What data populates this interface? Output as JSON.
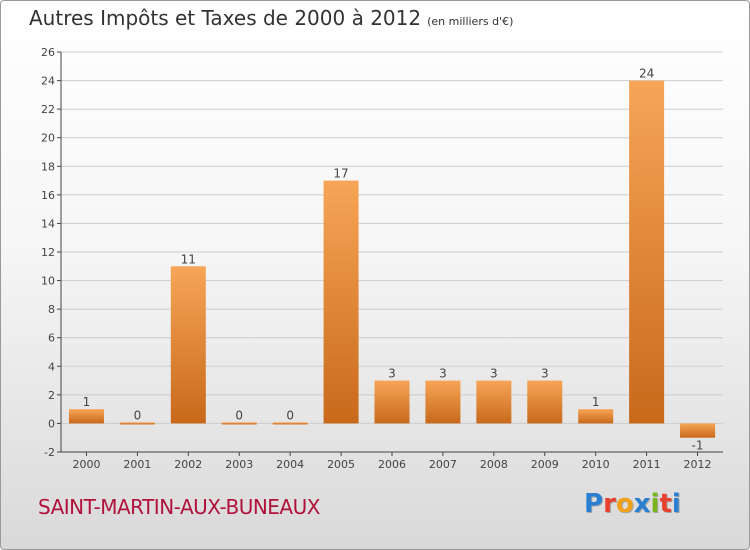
{
  "header": {
    "title": "Autres Impôts et Taxes de 2000 à 2012",
    "subtitle": "(en milliers d'€)"
  },
  "footer": {
    "commune": "SAINT-MARTIN-AUX-BUNEAUX",
    "brand": "Proxiti",
    "brand_colors": [
      "#2a7fd1",
      "#e8402e",
      "#f2a11b",
      "#2a7fd1",
      "#7ab51d",
      "#e8402e",
      "#2a7fd1"
    ]
  },
  "colors": {
    "bar_top": "#f7a558",
    "bar_bottom": "#c8691a",
    "grid": "#cccccc",
    "axis": "#444444",
    "title": "#333333",
    "commune": "#b0123b"
  },
  "chart_data": {
    "type": "bar",
    "categories": [
      "2000",
      "2001",
      "2002",
      "2003",
      "2004",
      "2005",
      "2006",
      "2007",
      "2008",
      "2009",
      "2010",
      "2011",
      "2012"
    ],
    "values": [
      1,
      0,
      11,
      0,
      0,
      17,
      3,
      3,
      3,
      3,
      1,
      24,
      -1
    ],
    "value_labels": [
      "1",
      "0",
      "11",
      "0",
      "0",
      "17",
      "3",
      "3",
      "3",
      "3",
      "1",
      "24",
      "-1"
    ],
    "title": "Autres Impôts et Taxes de 2000 à 2012",
    "subtitle": "(en milliers d'€)",
    "ylim": [
      -2,
      26
    ],
    "yticks": [
      -2,
      0,
      2,
      4,
      6,
      8,
      10,
      12,
      14,
      16,
      18,
      20,
      22,
      24,
      26
    ],
    "grid": true
  }
}
